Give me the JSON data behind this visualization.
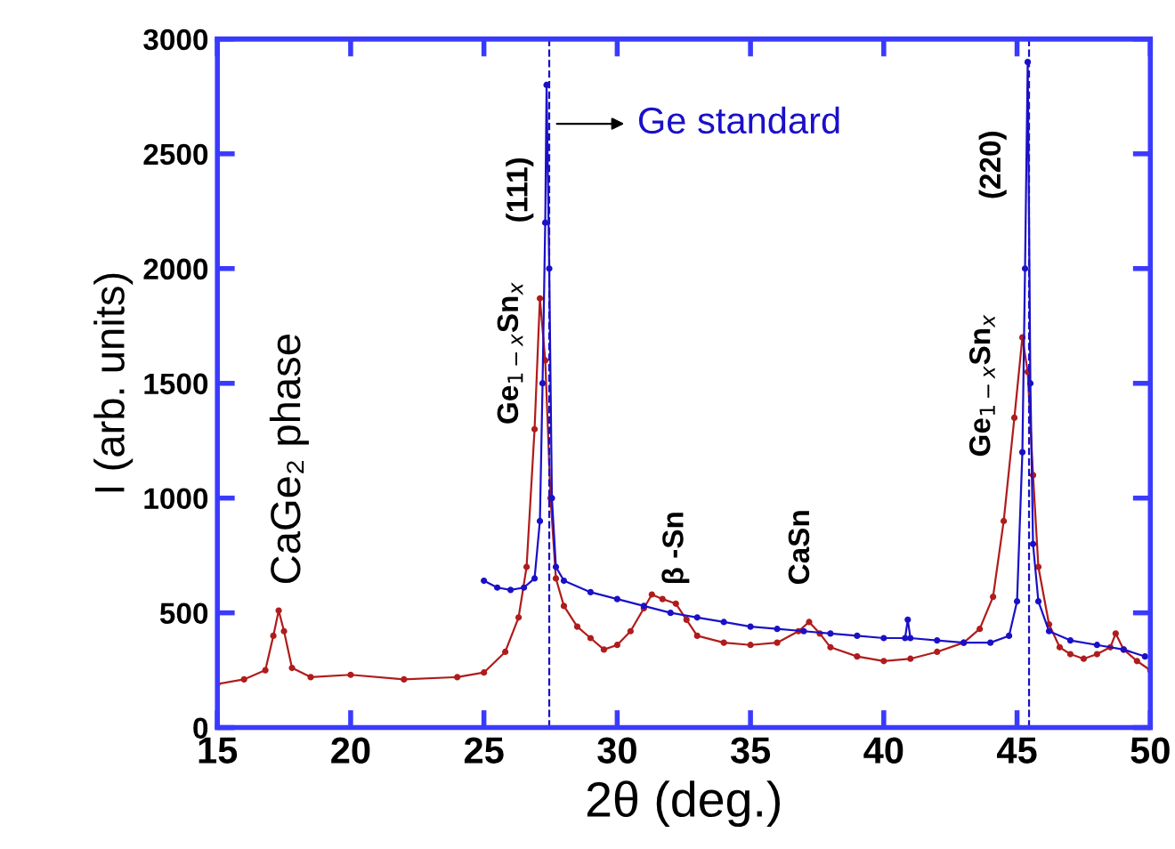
{
  "chart_data": {
    "type": "line",
    "xlabel": "2θ (deg.)",
    "ylabel": "I (arb. units)",
    "xlim": [
      15,
      50
    ],
    "ylim": [
      0,
      3000
    ],
    "xticks": [
      15,
      20,
      25,
      30,
      35,
      40,
      45,
      50
    ],
    "yticks": [
      0,
      500,
      1000,
      1500,
      2000,
      2500,
      3000
    ],
    "grid": false,
    "marker": "circle",
    "line_style": "solid",
    "series": [
      {
        "color": "#b01c1c",
        "x": [
          15,
          16,
          16.8,
          17.1,
          17.3,
          17.5,
          17.8,
          18.5,
          20,
          22,
          24,
          25,
          25.8,
          26.3,
          26.6,
          26.9,
          27.1,
          27.3,
          27.5,
          27.7,
          28,
          28.5,
          29,
          29.5,
          30,
          30.5,
          31,
          31.3,
          31.7,
          32.2,
          32.6,
          33,
          34,
          35,
          36,
          36.8,
          37.2,
          37.6,
          38,
          39,
          40,
          41,
          42,
          43,
          43.6,
          44.1,
          44.5,
          44.9,
          45.2,
          45.4,
          45.6,
          45.8,
          46.2,
          46.6,
          47,
          47.5,
          48,
          48.5,
          48.7,
          49,
          49.5,
          50
        ],
        "values": [
          190,
          210,
          250,
          400,
          510,
          420,
          260,
          220,
          230,
          210,
          220,
          240,
          330,
          480,
          700,
          1300,
          1870,
          1600,
          1000,
          650,
          530,
          440,
          390,
          340,
          360,
          420,
          520,
          580,
          560,
          540,
          470,
          400,
          370,
          360,
          370,
          420,
          460,
          410,
          350,
          310,
          290,
          300,
          330,
          370,
          430,
          570,
          900,
          1350,
          1700,
          1550,
          1100,
          700,
          450,
          350,
          320,
          300,
          320,
          350,
          410,
          340,
          290,
          250
        ]
      },
      {
        "name": "Ge standard",
        "color": "#1a10c8",
        "x": [
          25,
          25.5,
          26,
          26.5,
          26.9,
          27.1,
          27.2,
          27.3,
          27.35,
          27.45,
          27.55,
          27.7,
          28,
          29,
          30,
          31,
          32,
          33,
          34,
          35,
          36,
          37,
          38,
          39,
          40,
          40.8,
          40.9,
          41,
          42,
          43,
          44,
          44.7,
          45,
          45.2,
          45.3,
          45.4,
          45.5,
          45.6,
          45.8,
          46.2,
          47,
          48,
          49,
          49.8
        ],
        "values": [
          640,
          610,
          600,
          610,
          650,
          900,
          1500,
          2200,
          2800,
          2000,
          1000,
          700,
          640,
          590,
          560,
          530,
          500,
          480,
          460,
          440,
          430,
          420,
          410,
          400,
          390,
          390,
          470,
          390,
          380,
          370,
          370,
          400,
          550,
          1200,
          2000,
          2900,
          1500,
          800,
          550,
          420,
          380,
          360,
          340,
          310
        ]
      }
    ],
    "ref_lines": [
      {
        "axis": "x",
        "value": 27.45,
        "color": "#1a10c8",
        "line_style": "dashed"
      },
      {
        "axis": "x",
        "value": 45.45,
        "color": "#1a10c8",
        "line_style": "dashed"
      }
    ],
    "annotations": [
      "CaGe₂ phase",
      "Ge$_{1−x}$Sn$_{x}$",
      "(111)",
      "β -Sn",
      "CaSn",
      "Ge$_{1−x}$Sn$_{x}$",
      "(220)"
    ]
  }
}
